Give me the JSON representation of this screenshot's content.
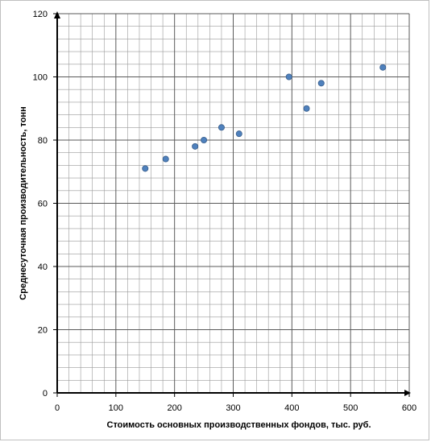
{
  "chart_data": {
    "type": "scatter",
    "title": "",
    "xlabel": "Стоимость основных производственных фондов, тыс. руб.",
    "ylabel": "Среднесуточная производительность, тонн",
    "xlim": [
      0,
      600
    ],
    "ylim": [
      0,
      120
    ],
    "x_ticks": [
      0,
      100,
      200,
      300,
      400,
      500,
      600
    ],
    "y_ticks": [
      0,
      20,
      40,
      60,
      80,
      100,
      120
    ],
    "x_tick_labels": [
      "0",
      "100",
      "200",
      "300",
      "400",
      "500",
      "600"
    ],
    "y_tick_labels": [
      "0",
      "20",
      "40",
      "60",
      "80",
      "100",
      "120"
    ],
    "grid": true,
    "legend": "none",
    "marker_color": "#4f81bd",
    "marker_edge_color": "#385d8a",
    "points": [
      {
        "x": 150,
        "y": 71
      },
      {
        "x": 185,
        "y": 74
      },
      {
        "x": 235,
        "y": 78
      },
      {
        "x": 250,
        "y": 80
      },
      {
        "x": 280,
        "y": 84
      },
      {
        "x": 310,
        "y": 82
      },
      {
        "x": 395,
        "y": 100
      },
      {
        "x": 425,
        "y": 90
      },
      {
        "x": 450,
        "y": 98
      },
      {
        "x": 555,
        "y": 103
      }
    ]
  }
}
